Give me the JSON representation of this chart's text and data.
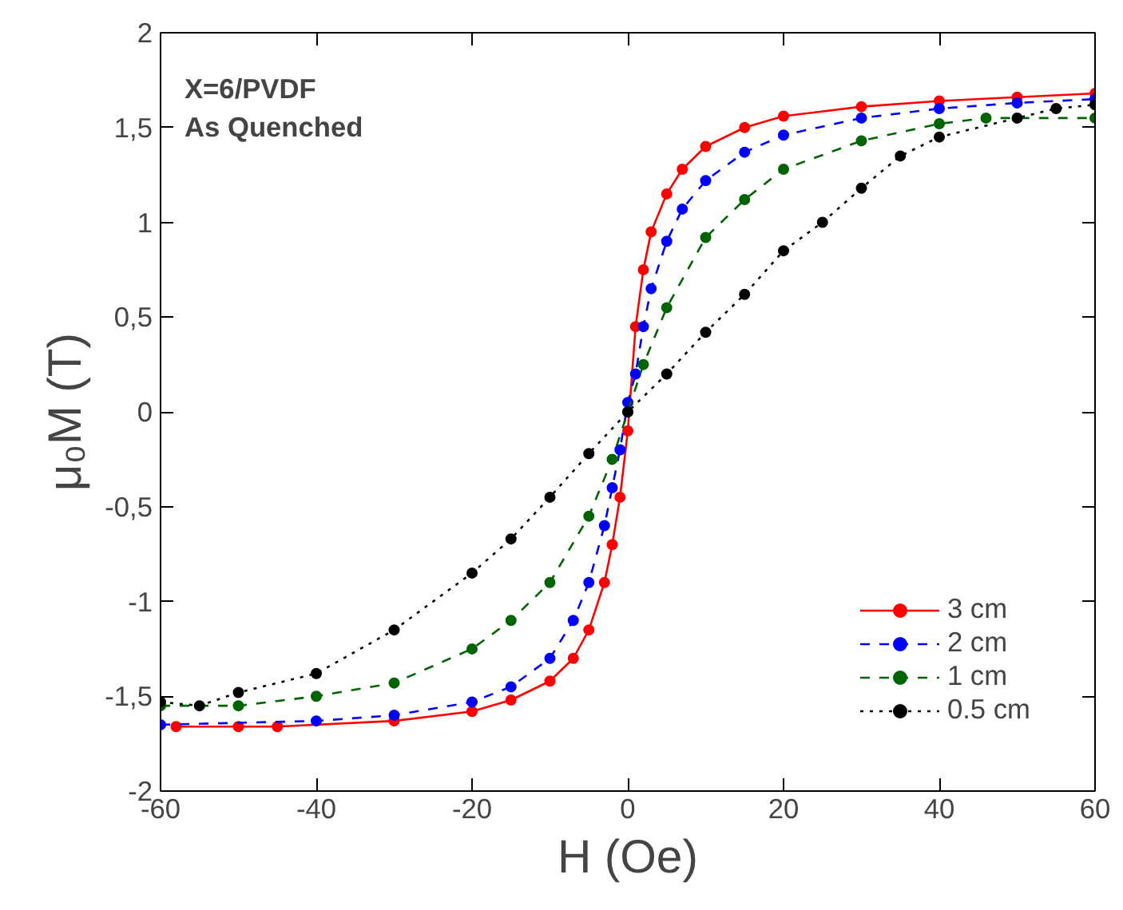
{
  "chart_data": {
    "type": "line",
    "xlabel": "H (Oe)",
    "ylabel": "μ₀M (T)",
    "annotations": [
      "X=6/PVDF",
      "As Quenched"
    ],
    "xlim": [
      -60,
      60
    ],
    "xticks": [
      -60,
      -40,
      -20,
      0,
      20,
      40,
      60
    ],
    "ylim": [
      -2,
      2
    ],
    "yticks": [
      -2,
      {
        "value": -1.5,
        "label": "-1,5"
      },
      -1,
      {
        "value": -0.5,
        "label": "-0,5"
      },
      0,
      {
        "value": 0.5,
        "label": "0,5"
      },
      1,
      {
        "value": 1.5,
        "label": "1,5"
      },
      2
    ],
    "grid": false,
    "legend": "bottom right",
    "marker": "circle",
    "series": [
      {
        "name": "3 cm",
        "color": "#ff0000",
        "line_style": "solid",
        "x": [
          -58,
          -50,
          -45,
          -30,
          -20,
          -15,
          -10,
          -7,
          -5,
          -3,
          -2,
          -1,
          0,
          1,
          2,
          3,
          5,
          7,
          10,
          15,
          20,
          30,
          40,
          50,
          60
        ],
        "values": [
          -1.66,
          -1.66,
          -1.66,
          -1.63,
          -1.58,
          -1.52,
          -1.42,
          -1.3,
          -1.15,
          -0.9,
          -0.7,
          -0.45,
          -0.1,
          0.45,
          0.75,
          0.95,
          1.15,
          1.28,
          1.4,
          1.5,
          1.56,
          1.61,
          1.64,
          1.66,
          1.68
        ]
      },
      {
        "name": "2 cm",
        "color": "#0000ff",
        "line_style": "dashed",
        "x": [
          -60,
          -40,
          -30,
          -20,
          -15,
          -10,
          -7,
          -5,
          -3,
          -2,
          -1,
          0,
          1,
          2,
          3,
          5,
          7,
          10,
          15,
          20,
          30,
          40,
          50,
          60
        ],
        "values": [
          -1.65,
          -1.63,
          -1.6,
          -1.53,
          -1.45,
          -1.3,
          -1.1,
          -0.9,
          -0.6,
          -0.4,
          -0.2,
          0.05,
          0.2,
          0.45,
          0.65,
          0.9,
          1.07,
          1.22,
          1.37,
          1.46,
          1.55,
          1.6,
          1.63,
          1.65
        ]
      },
      {
        "name": "1 cm",
        "color": "#006400",
        "line_style": "dashed",
        "x": [
          -60,
          -50,
          -40,
          -30,
          -20,
          -15,
          -10,
          -5,
          -2,
          0,
          2,
          5,
          10,
          15,
          20,
          30,
          40,
          46,
          60
        ],
        "values": [
          -1.55,
          -1.55,
          -1.5,
          -1.43,
          -1.25,
          -1.1,
          -0.9,
          -0.55,
          -0.25,
          0,
          0.25,
          0.55,
          0.92,
          1.12,
          1.28,
          1.43,
          1.52,
          1.55,
          1.55
        ]
      },
      {
        "name": "0.5 cm",
        "color": "#000000",
        "line_style": "dotted",
        "x": [
          -60,
          -55,
          -50,
          -40,
          -30,
          -20,
          -15,
          -10,
          -5,
          0,
          5,
          10,
          15,
          20,
          25,
          30,
          35,
          40,
          50,
          55,
          60
        ],
        "values": [
          -1.53,
          -1.55,
          -1.48,
          -1.38,
          -1.15,
          -0.85,
          -0.67,
          -0.45,
          -0.22,
          0,
          0.2,
          0.42,
          0.62,
          0.85,
          1.0,
          1.18,
          1.35,
          1.45,
          1.55,
          1.6,
          1.62
        ]
      }
    ]
  }
}
